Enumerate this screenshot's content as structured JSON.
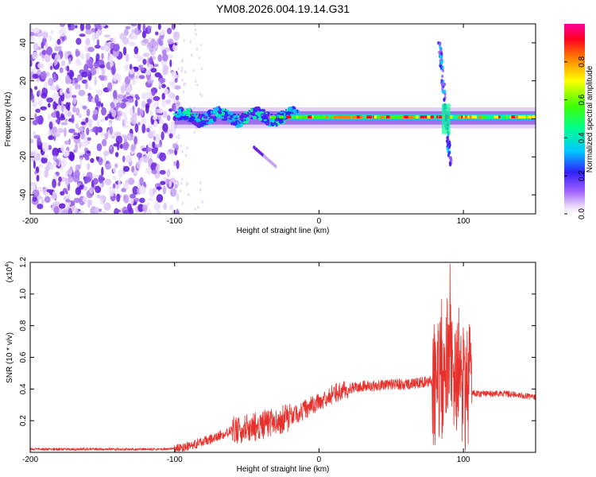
{
  "title": "YM08.2026.004.19.14.G31",
  "chart_data": [
    {
      "type": "heatmap",
      "xlabel": "Height of straight line (km)",
      "ylabel": "Frequency (Hz)",
      "xlim": [
        -200,
        150
      ],
      "ylim": [
        -50,
        50
      ],
      "xticks": [
        -200,
        -100,
        0,
        100
      ],
      "yticks": [
        -40,
        -20,
        0,
        20,
        40
      ],
      "colorbar": {
        "label": "Normalized spectral amplitude",
        "range": [
          0,
          1
        ],
        "ticks": [
          "0.0",
          "0.2",
          "0.4",
          "0.6",
          "0.8"
        ],
        "tick_values": [
          0.0,
          0.2,
          0.4,
          0.6,
          0.8
        ]
      },
      "features": {
        "noise_region_km": [
          -200,
          -100
        ],
        "carrier_band_hz": [
          -3,
          4
        ],
        "carrier_center_hz": 1,
        "spike_km": 88,
        "spike_freq_range_hz": [
          -25,
          40
        ],
        "side_streak": {
          "from": [
            -45,
            -15
          ],
          "to": [
            -30,
            -25
          ]
        }
      }
    },
    {
      "type": "line",
      "xlabel": "Height of straight line (km)",
      "ylabel": "SNR (10 * v/v)",
      "multiplier_label": "(x10",
      "multiplier_exp": "4",
      "multiplier_close": ")",
      "xlim": [
        -200,
        150
      ],
      "ylim": [
        0,
        1.2
      ],
      "xticks": [
        -200,
        -100,
        0,
        100
      ],
      "yticks": [
        0.2,
        0.4,
        0.6,
        0.8,
        1.0,
        1.2
      ],
      "ytick_labels": [
        "0.2",
        "0.4",
        "0.6",
        "0.8",
        "1.0",
        "1.2"
      ],
      "color": "#e8312c",
      "series": {
        "name": "SNR",
        "x": [
          -200,
          -150,
          -110,
          -100,
          -90,
          -80,
          -70,
          -60,
          -50,
          -40,
          -30,
          -20,
          -10,
          0,
          10,
          20,
          30,
          40,
          50,
          60,
          70,
          80,
          85,
          90,
          95,
          100,
          105,
          110,
          120,
          130,
          140,
          150
        ],
        "y": [
          0.02,
          0.02,
          0.02,
          0.025,
          0.04,
          0.07,
          0.1,
          0.14,
          0.15,
          0.17,
          0.2,
          0.22,
          0.27,
          0.32,
          0.37,
          0.4,
          0.42,
          0.42,
          0.43,
          0.43,
          0.44,
          0.45,
          0.5,
          0.6,
          0.45,
          0.4,
          0.38,
          0.37,
          0.37,
          0.37,
          0.36,
          0.35
        ]
      }
    }
  ]
}
